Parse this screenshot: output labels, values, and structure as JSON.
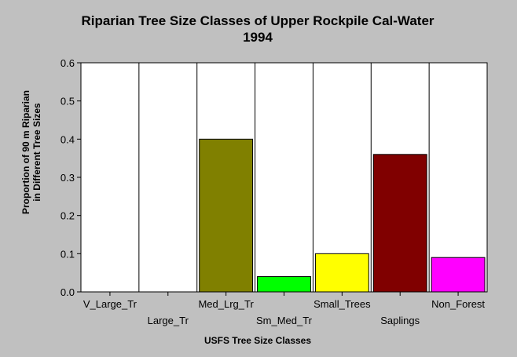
{
  "chart_data": {
    "type": "bar",
    "title": "Riparian Tree Size Classes of Upper Rockpile Cal-Water",
    "subtitle": "1994",
    "xlabel": "USFS Tree Size Classes",
    "ylabel_lines": [
      "Proportion of 90 m Riparian",
      "in Different Tree Sizes"
    ],
    "categories": [
      "V_Large_Tr",
      "Large_Tr",
      "Med_Lrg_Tr",
      "Sm_Med_Tr",
      "Small_Trees",
      "Saplings",
      "Non_Forest"
    ],
    "values": [
      0,
      0,
      0.4,
      0.04,
      0.1,
      0.36,
      0.09
    ],
    "colors": [
      "#808080",
      "#808080",
      "#808000",
      "#00ff00",
      "#ffff00",
      "#800000",
      "#ff00ff"
    ],
    "yticks": [
      "0.0",
      "0.1",
      "0.2",
      "0.3",
      "0.4",
      "0.5",
      "0.6"
    ],
    "ylim": [
      0,
      0.6
    ],
    "grid": true,
    "legend": "none"
  }
}
